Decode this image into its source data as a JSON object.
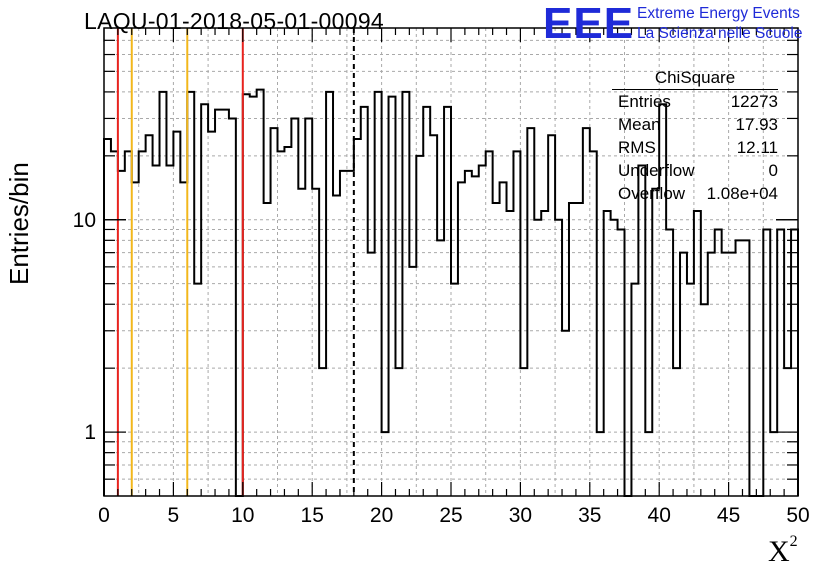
{
  "title": "LAQU-01-2018-05-01-00094",
  "logo": {
    "mark": "EEE",
    "line1": "Extreme Energy Events",
    "line2": "La Scienza nelle Scuole",
    "color": "#1f2bd8"
  },
  "stats": {
    "name": "ChiSquare",
    "rows": [
      {
        "key": "Entries",
        "value": "12273"
      },
      {
        "key": "Mean",
        "value": "17.93"
      },
      {
        "key": "RMS",
        "value": "12.11"
      },
      {
        "key": "Underflow",
        "value": "0"
      },
      {
        "key": "Overflow",
        "value": "1.08e+04"
      }
    ]
  },
  "chart_data": {
    "type": "histogram",
    "xlabel": "X",
    "xlabel_sup": "2",
    "ylabel": "Entries/bin",
    "xlim": [
      0,
      50
    ],
    "ylim": [
      0.5,
      80
    ],
    "yscale": "log",
    "grid": true,
    "x_ticks": [
      0,
      5,
      10,
      15,
      20,
      25,
      30,
      35,
      40,
      45,
      50
    ],
    "y_ticks": [
      1,
      10
    ],
    "bin_width": 0.5,
    "values": [
      24,
      21,
      17,
      21,
      15,
      21,
      25,
      18,
      40,
      18,
      26,
      15,
      40,
      5,
      35,
      26,
      33,
      33,
      30,
      0,
      39,
      38,
      41,
      12,
      27,
      21,
      22,
      30,
      14,
      30,
      14,
      2,
      40,
      13,
      17,
      17,
      24,
      34,
      7,
      40,
      1,
      38,
      2,
      40,
      6,
      20,
      34,
      25,
      8,
      34,
      5,
      15,
      17,
      16,
      18,
      21,
      12,
      15,
      11,
      21,
      2,
      27,
      10,
      11,
      25,
      10,
      3,
      12,
      12,
      27,
      21,
      1,
      11,
      10,
      9,
      0,
      5,
      18,
      1,
      14,
      35,
      9,
      2,
      7,
      5,
      11,
      4,
      7,
      9,
      7,
      7,
      8,
      8,
      0,
      0,
      9,
      1,
      9,
      2,
      9
    ],
    "threshold_lines": [
      {
        "x": 1,
        "color": "#e8231e",
        "style": "solid"
      },
      {
        "x": 2,
        "color": "#f2b71b",
        "style": "solid"
      },
      {
        "x": 6,
        "color": "#f2b71b",
        "style": "solid"
      },
      {
        "x": 10,
        "color": "#e8231e",
        "style": "solid"
      },
      {
        "x": 18,
        "color": "#000000",
        "style": "dashed"
      }
    ]
  }
}
